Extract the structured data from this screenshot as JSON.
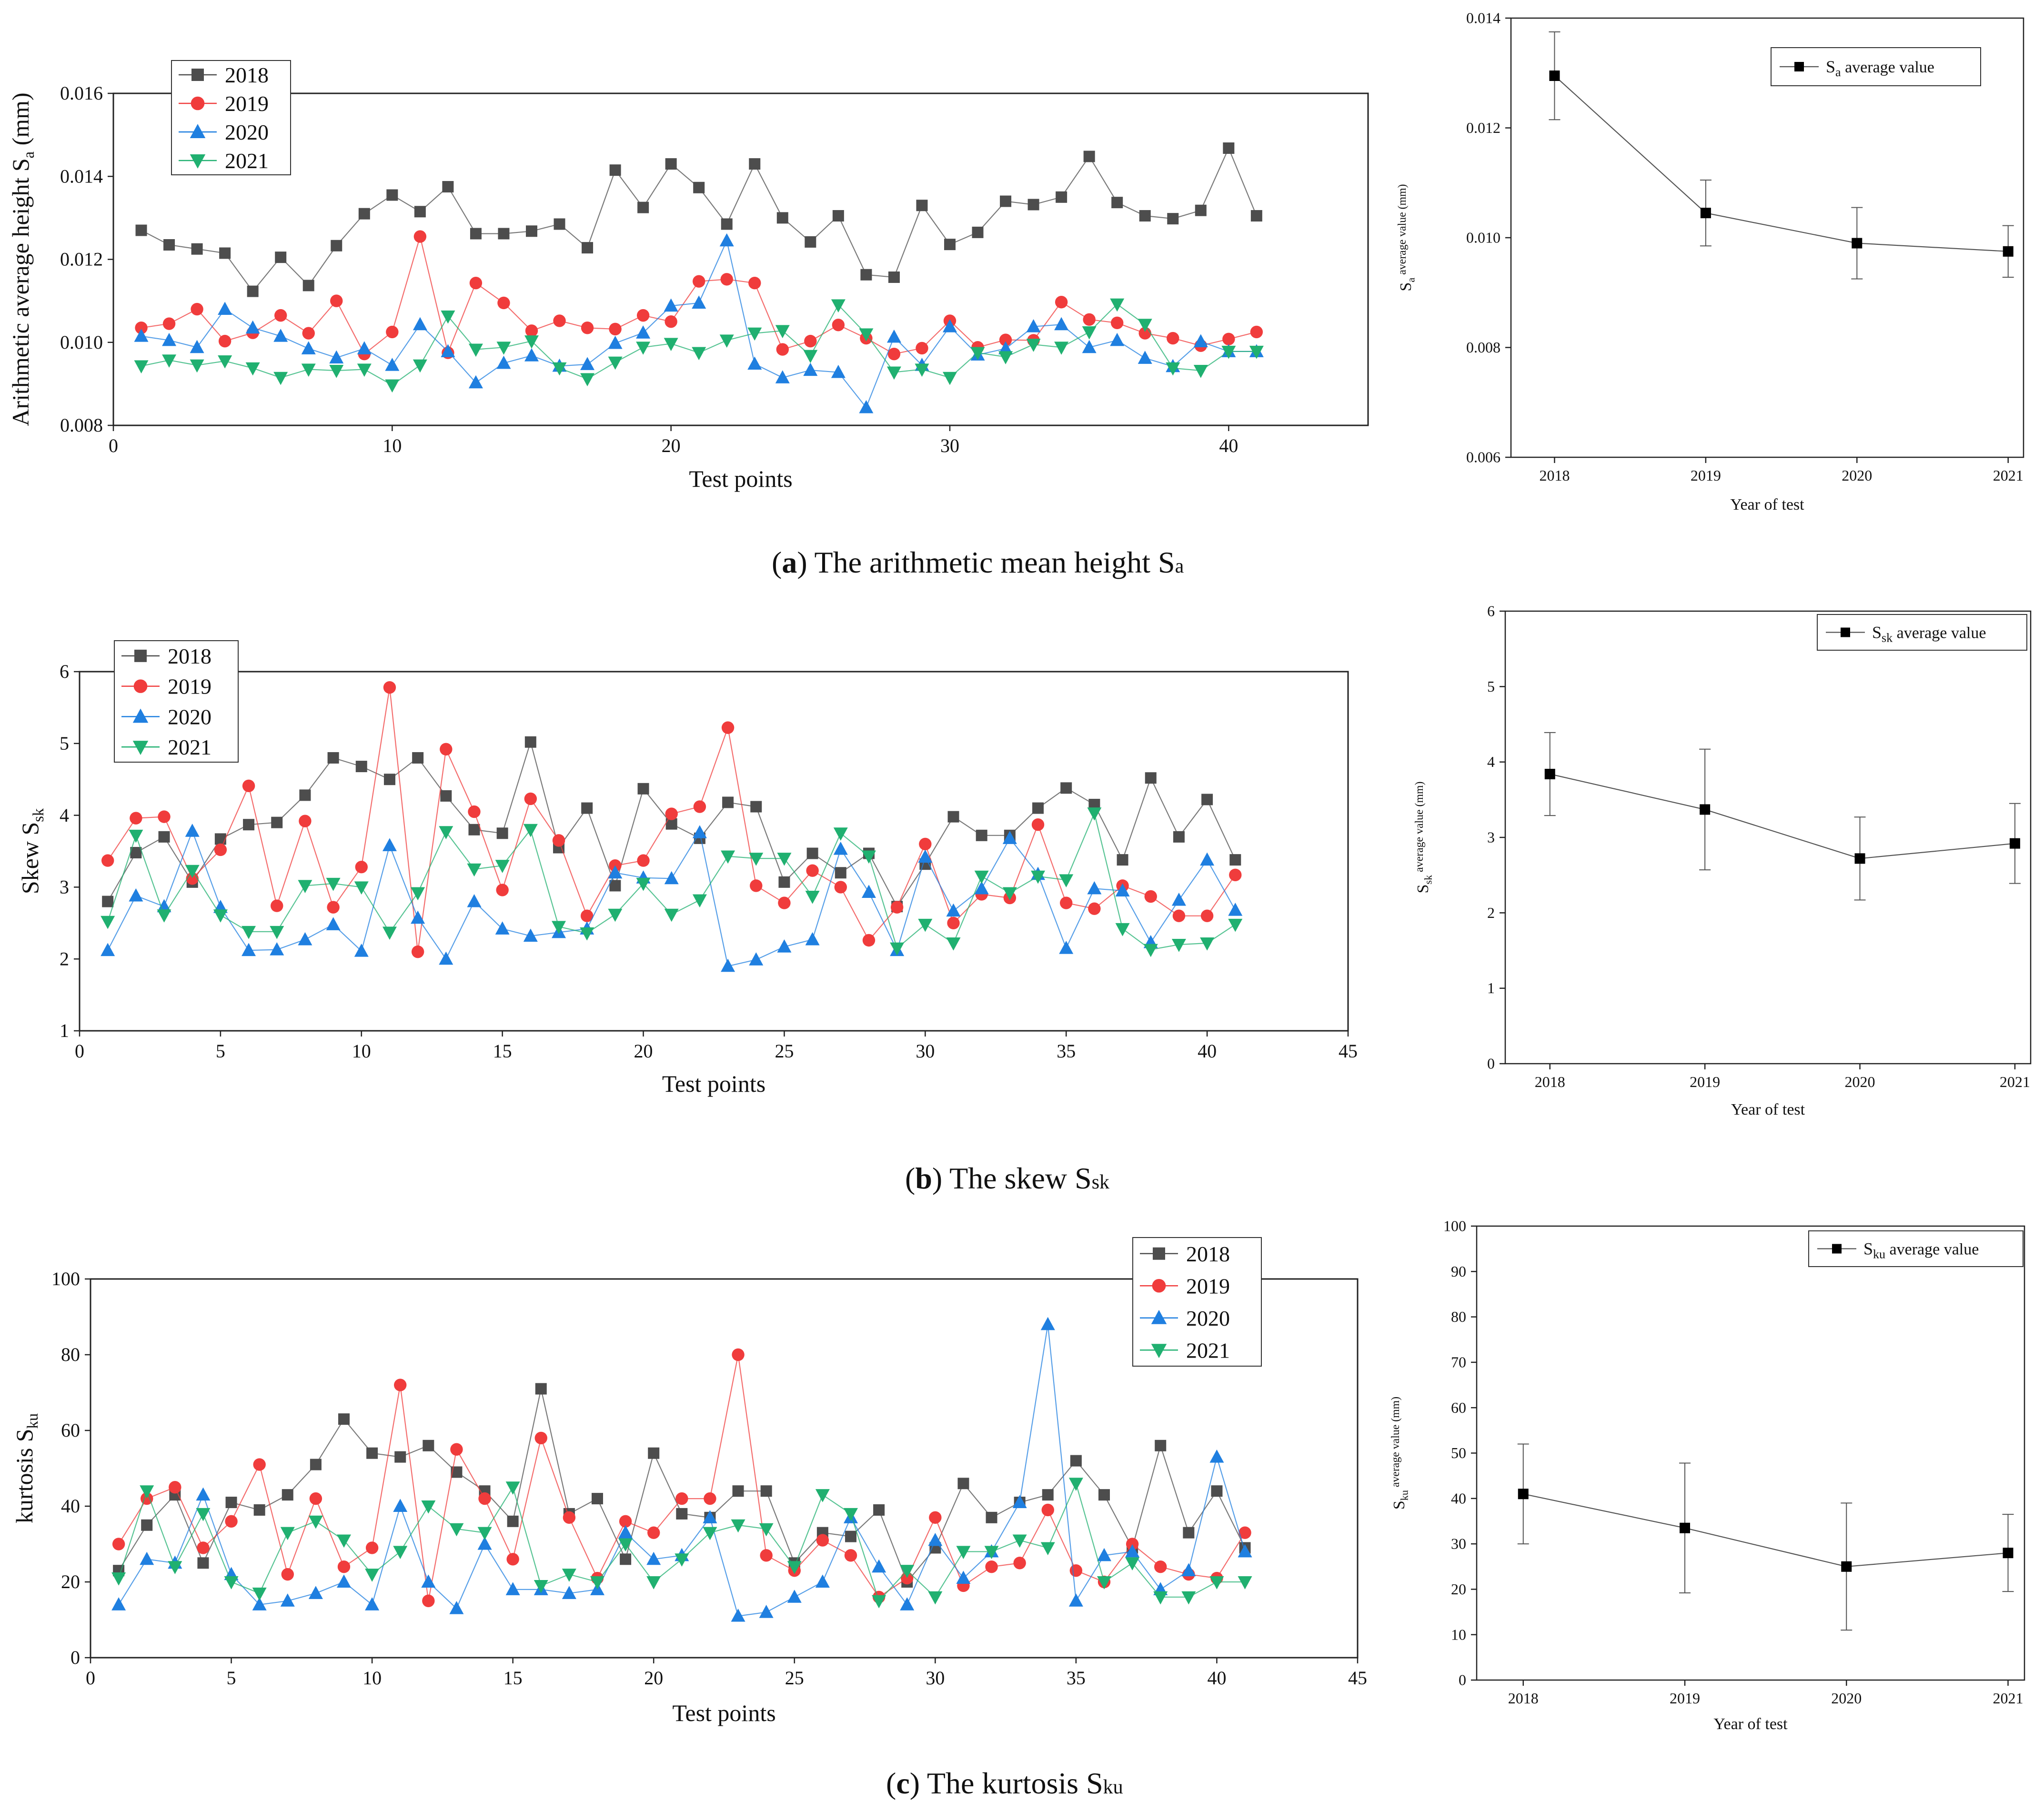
{
  "colors": {
    "2018": "#4d4d4d",
    "2019": "#f03c3c",
    "2020": "#1f7fe0",
    "2021": "#20b070",
    "avg": "#000000"
  },
  "captions": {
    "a": {
      "letter": "a",
      "text": "The arithmetic mean height S",
      "sub": "a"
    },
    "b": {
      "letter": "b",
      "text": "The skew S",
      "sub": "sk"
    },
    "c": {
      "letter": "c",
      "text": "The kurtosis S",
      "sub": "ku"
    }
  },
  "chart_data": [
    {
      "id": "sa-points",
      "type": "line",
      "ylabel": "Arithmetic average height  S",
      "ylabel_sub": "a",
      "ylabel_unit": " (mm)",
      "xlabel": "Test points",
      "xlim": [
        0,
        45
      ],
      "ylim": [
        0.008,
        0.016
      ],
      "xticks": [
        0,
        10,
        20,
        30,
        40
      ],
      "yticks": [
        0.008,
        0.01,
        0.012,
        0.014,
        0.016
      ],
      "ydec": 3,
      "legend_position": "top-left",
      "x": [
        1,
        2,
        3,
        4,
        5,
        6,
        7,
        8,
        9,
        10,
        11,
        12,
        13,
        14,
        15,
        16,
        17,
        18,
        19,
        20,
        21,
        22,
        23,
        24,
        25,
        26,
        27,
        28,
        29,
        30,
        31,
        32,
        33,
        34,
        35,
        36,
        37,
        38,
        39,
        40,
        41
      ],
      "series": [
        {
          "name": "2018",
          "marker": "square",
          "values": [
            0.0127,
            0.01235,
            0.01225,
            0.01215,
            0.01123,
            0.01205,
            0.01137,
            0.01233,
            0.0131,
            0.01355,
            0.01315,
            0.01375,
            0.01262,
            0.01262,
            0.01268,
            0.01285,
            0.01228,
            0.01415,
            0.01325,
            0.0143,
            0.01373,
            0.01285,
            0.0143,
            0.013,
            0.01242,
            0.01305,
            0.01163,
            0.01157,
            0.0133,
            0.01236,
            0.01265,
            0.0134,
            0.01332,
            0.0135,
            0.01448,
            0.01337,
            0.01305,
            0.01298,
            0.01318,
            0.01468,
            0.01305
          ]
        },
        {
          "name": "2019",
          "marker": "circle",
          "values": [
            0.01035,
            0.01045,
            0.0108,
            0.01003,
            0.01023,
            0.01065,
            0.01022,
            0.011,
            0.00972,
            0.01025,
            0.01255,
            0.00975,
            0.01143,
            0.01095,
            0.01028,
            0.01052,
            0.01035,
            0.01032,
            0.01065,
            0.0105,
            0.01147,
            0.01152,
            0.01143,
            0.00983,
            0.01003,
            0.01042,
            0.0101,
            0.00972,
            0.00986,
            0.01052,
            0.00988,
            0.01006,
            0.01005,
            0.01097,
            0.01055,
            0.01047,
            0.01022,
            0.0101,
            0.00992,
            0.01008,
            0.01025
          ]
        },
        {
          "name": "2020",
          "marker": "triangle",
          "values": [
            0.01015,
            0.01005,
            0.00988,
            0.0108,
            0.01035,
            0.01015,
            0.00985,
            0.00963,
            0.00985,
            0.00945,
            0.01043,
            0.00978,
            0.00903,
            0.0095,
            0.00968,
            0.00943,
            0.00947,
            0.00998,
            0.01023,
            0.01088,
            0.01095,
            0.01245,
            0.00948,
            0.00915,
            0.00933,
            0.00928,
            0.00843,
            0.01013,
            0.00945,
            0.01038,
            0.0097,
            0.00985,
            0.01038,
            0.01043,
            0.00988,
            0.01005,
            0.00962,
            0.00942,
            0.01002,
            0.00978,
            0.00978
          ]
        },
        {
          "name": "2021",
          "marker": "triangle-down",
          "values": [
            0.00943,
            0.00957,
            0.00945,
            0.00955,
            0.00938,
            0.00915,
            0.00935,
            0.00932,
            0.00935,
            0.00897,
            0.00945,
            0.01063,
            0.00983,
            0.00988,
            0.01003,
            0.00938,
            0.00912,
            0.00952,
            0.00988,
            0.00997,
            0.00975,
            0.01005,
            0.01022,
            0.01028,
            0.00968,
            0.0109,
            0.0102,
            0.00928,
            0.00935,
            0.00915,
            0.00975,
            0.00965,
            0.00995,
            0.00988,
            0.01025,
            0.01092,
            0.01043,
            0.00938,
            0.00932,
            0.00978,
            0.00978
          ]
        }
      ]
    },
    {
      "id": "sa-avg",
      "type": "line",
      "ylabel": "S",
      "ylabel_sub": "a",
      "ylabel_sup": "average value  (mm)",
      "xlabel": "Year of test",
      "categories": [
        "2018",
        "2019",
        "2020",
        "2021"
      ],
      "ylim": [
        0.006,
        0.014
      ],
      "yticks": [
        0.006,
        0.008,
        0.01,
        0.012,
        0.014
      ],
      "ydec": 3,
      "legend_position": "top-right",
      "series": [
        {
          "name": "S",
          "name_sub": "a",
          "name_suffix": " average value",
          "values": [
            0.01295,
            0.01045,
            0.0099,
            0.00975
          ],
          "errors": [
            0.0008,
            0.0006,
            0.00065,
            0.00047
          ]
        }
      ]
    },
    {
      "id": "ssk-points",
      "type": "line",
      "ylabel": "Skew  S",
      "ylabel_sub": "sk",
      "xlabel": "Test points",
      "xlim": [
        0,
        45
      ],
      "ylim": [
        1,
        6
      ],
      "xticks": [
        0,
        5,
        10,
        15,
        20,
        25,
        30,
        35,
        40,
        45
      ],
      "yticks": [
        1,
        2,
        3,
        4,
        5,
        6
      ],
      "ydec": 0,
      "legend_position": "top-left",
      "x": [
        1,
        2,
        3,
        4,
        5,
        6,
        7,
        8,
        9,
        10,
        11,
        12,
        13,
        14,
        15,
        16,
        17,
        18,
        19,
        20,
        21,
        22,
        23,
        24,
        25,
        26,
        27,
        28,
        29,
        30,
        31,
        32,
        33,
        34,
        35,
        36,
        37,
        38,
        39,
        40,
        41
      ],
      "series": [
        {
          "name": "2018",
          "marker": "square",
          "values": [
            2.8,
            3.48,
            3.7,
            3.07,
            3.67,
            3.87,
            3.9,
            4.28,
            4.8,
            4.68,
            4.5,
            4.8,
            4.27,
            3.8,
            3.75,
            5.02,
            3.55,
            4.1,
            3.02,
            4.37,
            3.88,
            3.68,
            4.18,
            4.12,
            3.07,
            3.47,
            3.2,
            3.47,
            2.73,
            3.32,
            3.98,
            3.72,
            3.72,
            4.1,
            4.38,
            4.15,
            3.38,
            4.52,
            3.7,
            4.22,
            3.38
          ]
        },
        {
          "name": "2019",
          "marker": "circle",
          "values": [
            3.37,
            3.96,
            3.98,
            3.12,
            3.52,
            4.41,
            2.74,
            3.92,
            2.72,
            3.28,
            5.78,
            2.1,
            4.92,
            4.05,
            2.96,
            4.23,
            3.65,
            2.6,
            3.3,
            3.37,
            4.02,
            4.12,
            5.22,
            3.02,
            2.78,
            3.23,
            3.0,
            2.26,
            2.72,
            3.6,
            2.5,
            2.9,
            2.85,
            3.87,
            2.78,
            2.7,
            3.02,
            2.87,
            2.6,
            2.6,
            3.17
          ]
        },
        {
          "name": "2020",
          "marker": "triangle",
          "values": [
            2.12,
            2.88,
            2.73,
            3.78,
            2.72,
            2.12,
            2.13,
            2.27,
            2.48,
            2.11,
            3.58,
            2.57,
            2.0,
            2.8,
            2.42,
            2.32,
            2.37,
            2.42,
            3.2,
            3.13,
            3.12,
            3.76,
            1.9,
            1.99,
            2.17,
            2.27,
            3.53,
            2.93,
            2.12,
            3.42,
            2.67,
            2.98,
            3.68,
            3.18,
            2.15,
            2.98,
            2.95,
            2.23,
            2.82,
            3.38,
            2.68
          ]
        },
        {
          "name": "2021",
          "marker": "triangle-down",
          "values": [
            2.52,
            3.72,
            2.61,
            3.23,
            2.61,
            2.38,
            2.38,
            3.02,
            3.05,
            3.0,
            2.37,
            2.92,
            3.77,
            3.25,
            3.3,
            3.8,
            2.45,
            2.36,
            2.62,
            3.05,
            2.62,
            2.82,
            3.43,
            3.4,
            3.4,
            2.87,
            3.75,
            3.43,
            2.15,
            2.48,
            2.22,
            3.15,
            2.92,
            3.15,
            3.1,
            4.03,
            2.42,
            2.13,
            2.2,
            2.22,
            2.48
          ]
        }
      ]
    },
    {
      "id": "ssk-avg",
      "type": "line",
      "ylabel": "S",
      "ylabel_sub": "sk",
      "ylabel_sup": "average value  (mm)",
      "xlabel": "Year of test",
      "categories": [
        "2018",
        "2019",
        "2020",
        "2021"
      ],
      "ylim": [
        0,
        6
      ],
      "yticks": [
        0,
        1,
        2,
        3,
        4,
        5,
        6
      ],
      "ydec": 0,
      "legend_position": "top-right",
      "series": [
        {
          "name": "S",
          "name_sub": "sk",
          "name_suffix": " average value",
          "values": [
            3.84,
            3.37,
            2.72,
            2.92
          ],
          "errors": [
            0.55,
            0.8,
            0.55,
            0.53
          ]
        }
      ]
    },
    {
      "id": "sku-points",
      "type": "line",
      "ylabel": "kurtosis  S",
      "ylabel_sub": "ku",
      "xlabel": "Test points",
      "xlim": [
        0,
        45
      ],
      "ylim": [
        0,
        100
      ],
      "xticks": [
        0,
        5,
        10,
        15,
        20,
        25,
        30,
        35,
        40,
        45
      ],
      "yticks": [
        0,
        20,
        40,
        60,
        80,
        100
      ],
      "ydec": 0,
      "legend_position": "top-right",
      "x": [
        1,
        2,
        3,
        4,
        5,
        6,
        7,
        8,
        9,
        10,
        11,
        12,
        13,
        14,
        15,
        16,
        17,
        18,
        19,
        20,
        21,
        22,
        23,
        24,
        25,
        26,
        27,
        28,
        29,
        30,
        31,
        32,
        33,
        34,
        35,
        36,
        37,
        38,
        39,
        40,
        41
      ],
      "series": [
        {
          "name": "2018",
          "marker": "square",
          "values": [
            23,
            35,
            43,
            25,
            41,
            39,
            43,
            51,
            63,
            54,
            53,
            56,
            49,
            44,
            36,
            71,
            38,
            42,
            26,
            54,
            38,
            37,
            44,
            44,
            25,
            33,
            32,
            39,
            20,
            29,
            46,
            37,
            41,
            43,
            52,
            43,
            29,
            56,
            33,
            44,
            29
          ]
        },
        {
          "name": "2019",
          "marker": "circle",
          "values": [
            30,
            42,
            45,
            29,
            36,
            51,
            22,
            42,
            24,
            29,
            72,
            15,
            55,
            42,
            26,
            58,
            37,
            21,
            36,
            33,
            42,
            42,
            80,
            27,
            23,
            31,
            27,
            16,
            21,
            37,
            19,
            24,
            25,
            39,
            23,
            20,
            30,
            24,
            22,
            21,
            33
          ]
        },
        {
          "name": "2020",
          "marker": "triangle",
          "values": [
            14,
            26,
            25,
            43,
            22,
            14,
            15,
            17,
            20,
            14,
            40,
            20,
            13,
            30,
            18,
            18,
            17,
            18,
            33,
            26,
            27,
            37,
            11,
            12,
            16,
            20,
            37,
            24,
            14,
            31,
            21,
            28,
            41,
            88,
            15,
            27,
            28,
            18,
            23,
            53,
            28
          ]
        },
        {
          "name": "2021",
          "marker": "triangle-down",
          "values": [
            21,
            44,
            24,
            38,
            20,
            17,
            33,
            36,
            31,
            22,
            28,
            40,
            34,
            33,
            45,
            19,
            22,
            20,
            30,
            20,
            26,
            33,
            35,
            34,
            24,
            43,
            38,
            15,
            23,
            16,
            28,
            28,
            31,
            29,
            46,
            20,
            25,
            16,
            16,
            20,
            20
          ]
        }
      ]
    },
    {
      "id": "sku-avg",
      "type": "line",
      "ylabel": "S",
      "ylabel_sub": "ku",
      "ylabel_sup": "average value  (mm)",
      "xlabel": "Year of test",
      "categories": [
        "2018",
        "2019",
        "2020",
        "2021"
      ],
      "ylim": [
        0,
        100
      ],
      "yticks": [
        0,
        10,
        20,
        30,
        40,
        50,
        60,
        70,
        80,
        90,
        100
      ],
      "ydec": 0,
      "legend_position": "top-right",
      "series": [
        {
          "name": "S",
          "name_sub": "ku",
          "name_suffix": " average value",
          "values": [
            41,
            33.5,
            25,
            28
          ],
          "errors": [
            11,
            14.3,
            14,
            8.5
          ]
        }
      ]
    }
  ]
}
